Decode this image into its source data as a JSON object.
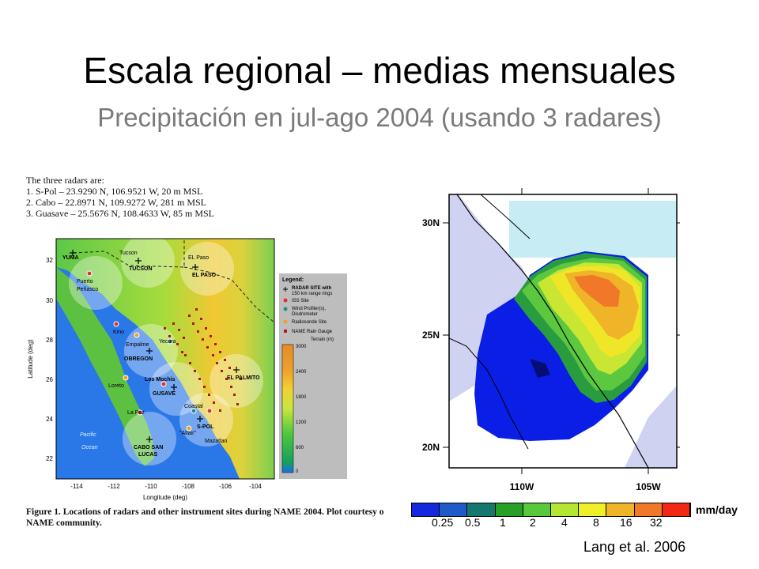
{
  "slide": {
    "title": "Escala regional – medias mensuales",
    "subtitle": "Precipitación en jul-ago 2004 (usando 3 radares)",
    "credit": "Lang et al. 2006"
  },
  "radar_info": {
    "heading": "The three radars are:",
    "lines": [
      "1. S-Pol – 23.9290 N, 106.9521 W, 20 m MSL",
      "2. Cabo – 22.8971 N, 109.9272 W, 281 m MSL",
      "3. Guasave – 25.5676 N, 108.4633 W, 85 m MSL"
    ]
  },
  "left_map": {
    "y_ticks": [
      "32",
      "30",
      "28",
      "26",
      "24",
      "22"
    ],
    "x_ticks": [
      "-114",
      "-112",
      "-110",
      "-108",
      "-106",
      "-104"
    ],
    "xlabel": "Longitude (deg)",
    "ylabel": "Latitude (deg)",
    "places": {
      "yuma": "YUMA",
      "tucson_city": "Tucson",
      "tucson": "TUCSON",
      "elpaso_city": "EL Paso",
      "elpaso": "EL PASO",
      "puerto": "Puerto",
      "penasco": "Peñasco",
      "kino": "Kino",
      "empalme": "Empalme",
      "yecora": "Yecora",
      "obregon": "OBREGON",
      "loreto": "Loreto",
      "losmochis": "Los Mochis",
      "guasave": "GUSAVE",
      "elpalmito": "EL PALMITO",
      "lapaz": "La Paz",
      "coastal": "Coastal",
      "altair": "\"Altair\"",
      "spol": "S-POL",
      "mazatlan": "Mazatlan",
      "cabo": "CABO SAN",
      "lucas": "LUCAS",
      "pacific": "Pacific",
      "ocean": "Ocean"
    },
    "legend": {
      "title": "Legend:",
      "radar_site": "RADAR SITE with",
      "radar_site2": "150 km range rings",
      "iss": "ISS Site",
      "wind": "Wind Profiler(s),",
      "wind2": "Disdrometer",
      "radiosonde": "Radiosonde Site",
      "gauge": "NAME Rain Gauge",
      "terrain_label": "Terrain (m)",
      "terrain_ticks": [
        "3000",
        "2400",
        "1800",
        "1200",
        "600",
        "0"
      ]
    },
    "caption_bold": "Figure 1.  Locations of radars and other instrument sites during NAME 2004.  Plot courtesy o",
    "caption_rest": "NAME community."
  },
  "right_map": {
    "y_ticks": [
      "30N",
      "25N",
      "20N"
    ],
    "x_ticks": [
      "110W",
      "105W"
    ]
  },
  "colorbar": {
    "labels": [
      "0.25",
      "0.5",
      "1",
      "2",
      "4",
      "8",
      "16",
      "32"
    ],
    "unit": "mm/day",
    "colors": [
      "#1428e0",
      "#1e5ac8",
      "#14786e",
      "#28a028",
      "#5ac83c",
      "#b4e632",
      "#f0f028",
      "#f0b428",
      "#f07828",
      "#f02814"
    ]
  }
}
